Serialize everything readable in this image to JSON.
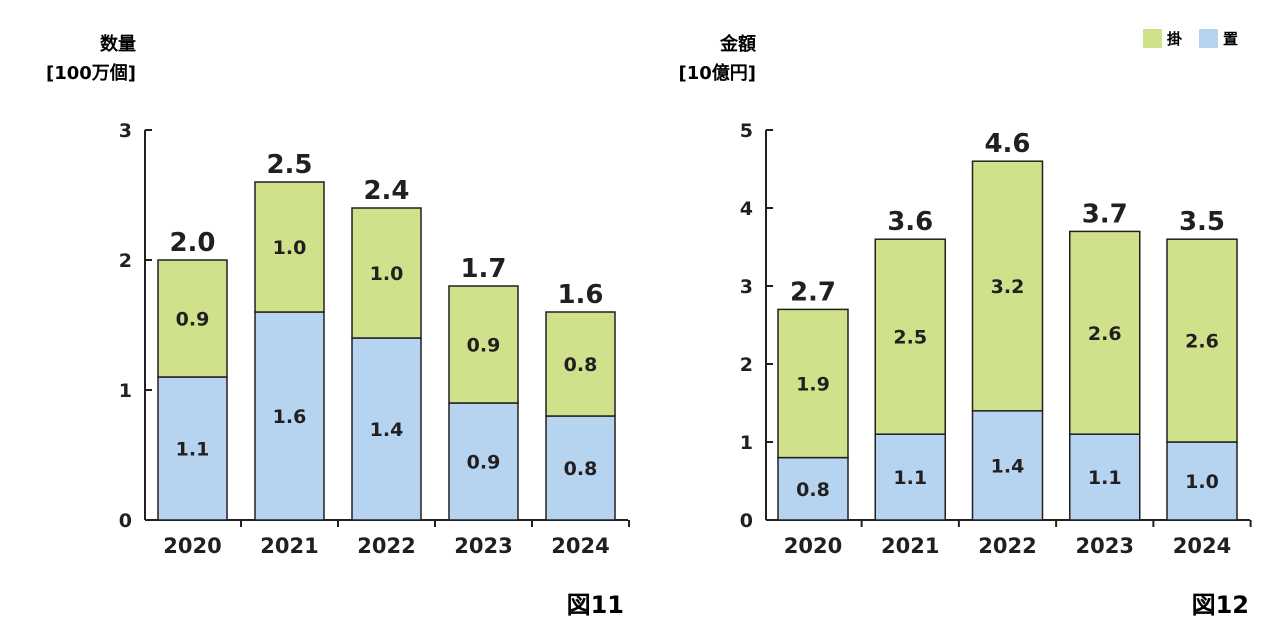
{
  "colors": {
    "kake": "#cfe18b",
    "oki": "#b6d3ef",
    "stroke": "#231f20"
  },
  "legend": {
    "kake_label": "掛",
    "oki_label": "置"
  },
  "chart_data": [
    {
      "type": "bar",
      "stacked": true,
      "figure_label": "図11",
      "ylabel_line1": "数量",
      "ylabel_line2": "[100万個]",
      "categories": [
        "2020",
        "2021",
        "2022",
        "2023",
        "2024"
      ],
      "ylim": [
        0,
        3
      ],
      "yticks": [
        0,
        1,
        2,
        3
      ],
      "series": [
        {
          "name": "置",
          "key": "oki",
          "values": [
            1.1,
            1.6,
            1.4,
            0.9,
            0.8
          ]
        },
        {
          "name": "掛",
          "key": "kake",
          "values": [
            0.9,
            1.0,
            1.0,
            0.9,
            0.8
          ]
        }
      ],
      "segment_labels": {
        "oki": [
          "1.1",
          "1.6",
          "1.4",
          "0.9",
          "0.8"
        ],
        "kake": [
          "0.9",
          "1.0",
          "1.0",
          "0.9",
          "0.8"
        ]
      },
      "totals": [
        "2.0",
        "2.5",
        "2.4",
        "1.7",
        "1.6"
      ]
    },
    {
      "type": "bar",
      "stacked": true,
      "figure_label": "図12",
      "ylabel_line1": "金額",
      "ylabel_line2": "[10億円]",
      "categories": [
        "2020",
        "2021",
        "2022",
        "2023",
        "2024"
      ],
      "ylim": [
        0,
        5
      ],
      "yticks": [
        0,
        1,
        2,
        3,
        4,
        5
      ],
      "series": [
        {
          "name": "置",
          "key": "oki",
          "values": [
            0.8,
            1.1,
            1.4,
            1.1,
            1.0
          ]
        },
        {
          "name": "掛",
          "key": "kake",
          "values": [
            1.9,
            2.5,
            3.2,
            2.6,
            2.6
          ]
        }
      ],
      "segment_labels": {
        "oki": [
          "0.8",
          "1.1",
          "1.4",
          "1.1",
          "1.0"
        ],
        "kake": [
          "1.9",
          "2.5",
          "3.2",
          "2.6",
          "2.6"
        ]
      },
      "totals": [
        "2.7",
        "3.6",
        "4.6",
        "3.7",
        "3.5"
      ]
    }
  ]
}
